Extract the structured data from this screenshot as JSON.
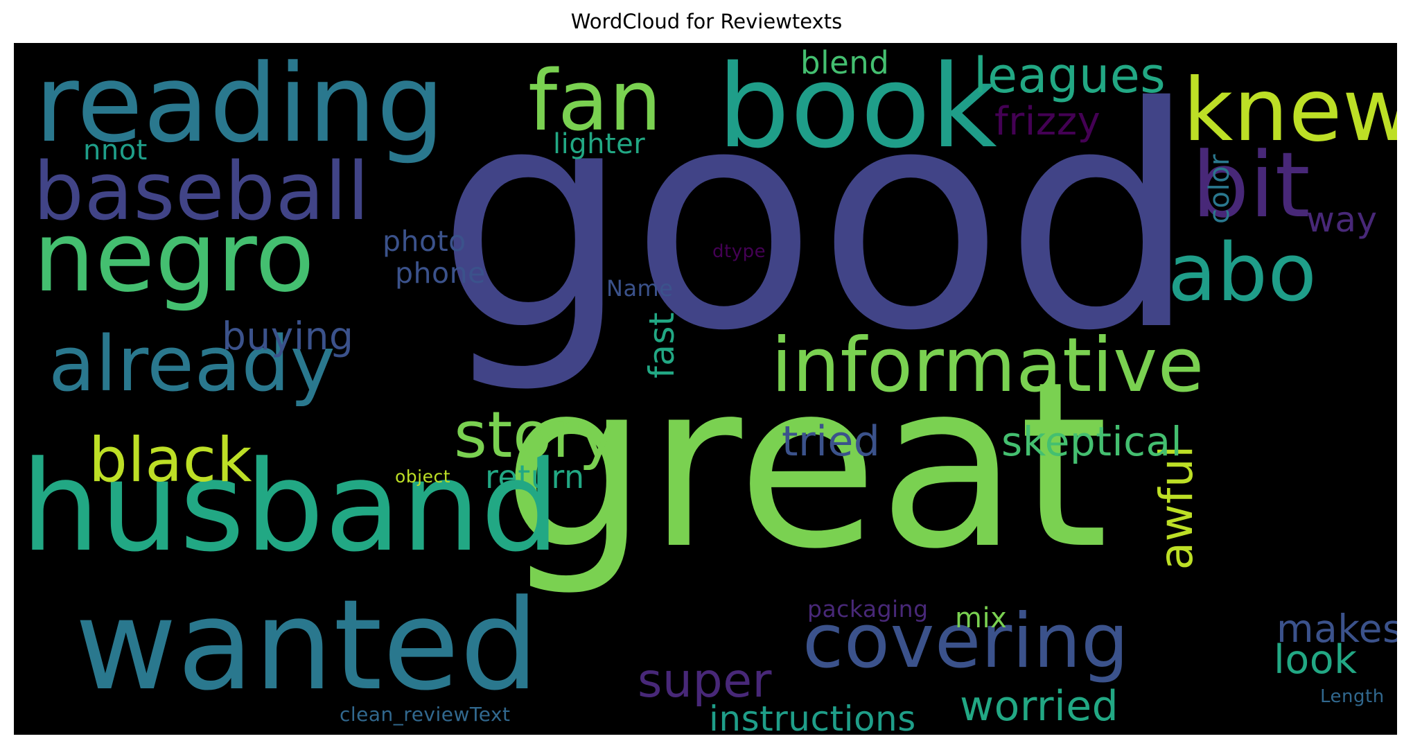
{
  "title": "WordCloud for Reviewtexts",
  "background": "#000000",
  "colormap": "viridis",
  "words": [
    {
      "text": "good",
      "color": "#414487"
    },
    {
      "text": "great",
      "color": "#7ad151"
    },
    {
      "text": "husband",
      "color": "#22a884"
    },
    {
      "text": "wanted",
      "color": "#2a788e"
    },
    {
      "text": "reading",
      "color": "#2a788e"
    },
    {
      "text": "book",
      "color": "#1f9e89"
    },
    {
      "text": "fan",
      "color": "#7ad151"
    },
    {
      "text": "knew",
      "color": "#bddf26"
    },
    {
      "text": "negro",
      "color": "#44bf70"
    },
    {
      "text": "baseball",
      "color": "#414487"
    },
    {
      "text": "already",
      "color": "#2a788e"
    },
    {
      "text": "informative",
      "color": "#7ad151"
    },
    {
      "text": "covering",
      "color": "#3b528b"
    },
    {
      "text": "abo",
      "color": "#1f9e89"
    },
    {
      "text": "bit",
      "color": "#482878"
    },
    {
      "text": "story",
      "color": "#7ad151"
    },
    {
      "text": "black",
      "color": "#bddf26"
    },
    {
      "text": "leagues",
      "color": "#22a884"
    },
    {
      "text": "awful",
      "color": "#bddf26"
    },
    {
      "text": "super",
      "color": "#482878"
    },
    {
      "text": "makes",
      "color": "#3b528b"
    },
    {
      "text": "worried",
      "color": "#22a884"
    },
    {
      "text": "tried",
      "color": "#3b528b"
    },
    {
      "text": "skeptical",
      "color": "#44bf70"
    },
    {
      "text": "instructions",
      "color": "#1f9e89"
    },
    {
      "text": "look",
      "color": "#22a884"
    },
    {
      "text": "frizzy",
      "color": "#440154"
    },
    {
      "text": "buying",
      "color": "#3b528b"
    },
    {
      "text": "fast",
      "color": "#22a884"
    },
    {
      "text": "return",
      "color": "#22a884"
    },
    {
      "text": "way",
      "color": "#482878"
    },
    {
      "text": "color",
      "color": "#2a788e"
    },
    {
      "text": "blend",
      "color": "#44bf70"
    },
    {
      "text": "lighter",
      "color": "#22a884"
    },
    {
      "text": "photo",
      "color": "#3b528b"
    },
    {
      "text": "phone",
      "color": "#3b528b"
    },
    {
      "text": "mix",
      "color": "#7ad151"
    },
    {
      "text": "nnot",
      "color": "#1f9e89"
    },
    {
      "text": "packaging",
      "color": "#482878"
    },
    {
      "text": "Name",
      "color": "#3b528b"
    },
    {
      "text": "dtype",
      "color": "#440154"
    },
    {
      "text": "object",
      "color": "#bddf26"
    },
    {
      "text": "clean_reviewText",
      "color": "#31688e"
    },
    {
      "text": "Length",
      "color": "#31688e"
    }
  ]
}
